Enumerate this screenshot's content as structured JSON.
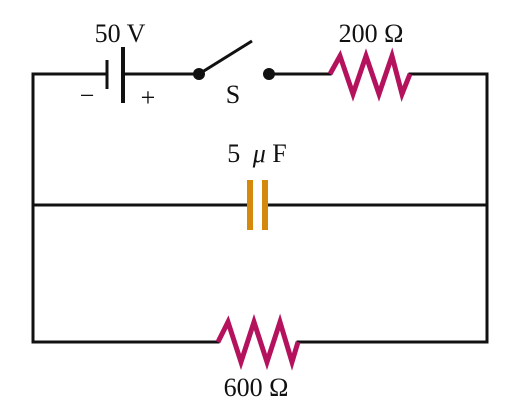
{
  "colors": {
    "wire": "#111111",
    "resistor": "#b5125e",
    "capacitor": "#d4890c",
    "background": "#ffffff"
  },
  "battery": {
    "voltage_label": "50 V",
    "negative_sign": "−",
    "positive_sign": "+"
  },
  "switch": {
    "label": "S"
  },
  "resistor_top": {
    "label": "200 Ω"
  },
  "capacitor": {
    "value": "5",
    "unit_prefix": "μ",
    "unit": "F"
  },
  "resistor_bottom": {
    "label": "600 Ω"
  }
}
